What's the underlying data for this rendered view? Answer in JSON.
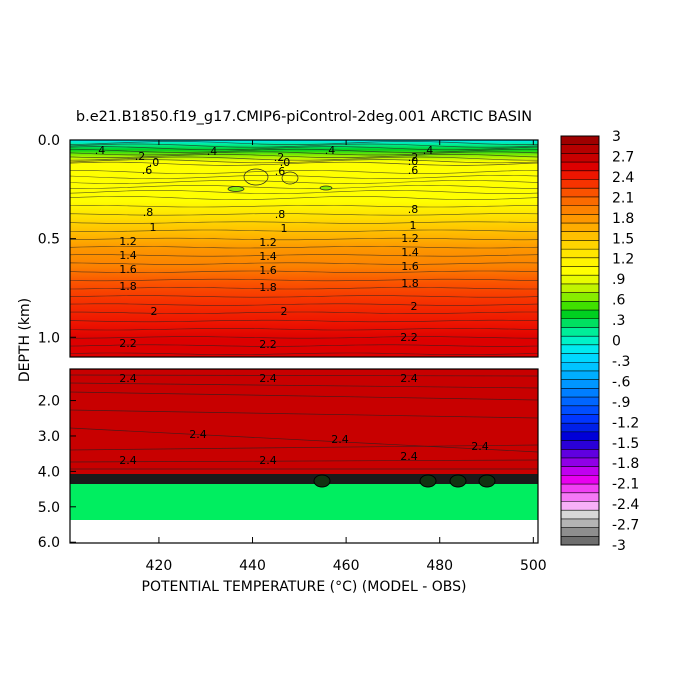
{
  "chart_data": {
    "type": "heatmap",
    "title": "b.e21.B1850.f19_g17.CMIP6-piControl-2deg.001 ARCTIC BASIN",
    "xlabel": "POTENTIAL TEMPERATURE (°C) (MODEL - OBS)",
    "ylabel": "DEPTH (km)",
    "xlim": [
      401,
      501
    ],
    "x_ticks": [
      "420",
      "440",
      "460",
      "480",
      "500"
    ],
    "panels": [
      {
        "name": "upper",
        "ylim": [
          0.0,
          1.1
        ],
        "y_ticks": [
          "0.0",
          "0.5",
          "1.0"
        ],
        "contour_labels": [
          ".4",
          ".2",
          ".0",
          ".6",
          ".8",
          "1",
          "1.2",
          "1.4",
          "1.6",
          "1.8",
          "2",
          "2.2"
        ]
      },
      {
        "name": "lower",
        "ylim": [
          1.1,
          6.0
        ],
        "y_ticks": [
          "2.0",
          "3.0",
          "4.0",
          "5.0",
          "6.0"
        ],
        "contour_labels": [
          "2.4"
        ]
      }
    ],
    "colorbar": {
      "tick_labels": [
        "3",
        "2.7",
        "2.4",
        "2.1",
        "1.8",
        "1.5",
        "1.2",
        ".9",
        ".6",
        ".3",
        "0",
        "-.3",
        "-.6",
        "-.9",
        "-1.2",
        "-1.5",
        "-1.8",
        "-2.1",
        "-2.4",
        "-2.7",
        "-3"
      ],
      "colors_top_to_bottom": [
        "#9e0000",
        "#b50000",
        "#c80000",
        "#dd0000",
        "#ee1500",
        "#f73300",
        "#fa5200",
        "#fb6b00",
        "#fc8200",
        "#fd9700",
        "#feac00",
        "#ffc000",
        "#ffd400",
        "#ffe600",
        "#fff400",
        "#ffff00",
        "#e8fc00",
        "#c0f400",
        "#88ec00",
        "#40e000",
        "#00d020",
        "#00e060",
        "#00ee99",
        "#00f2c8",
        "#00eaf0",
        "#00d8ff",
        "#00c4ff",
        "#00aeff",
        "#0096ff",
        "#007eff",
        "#0066ff",
        "#004eff",
        "#0036ff",
        "#0020e8",
        "#0000d8",
        "#2a00d8",
        "#6000e0",
        "#9000e8",
        "#c000f0",
        "#e800f0",
        "#f040f4",
        "#f478f6",
        "#f8b0f8",
        "#d8d8d8",
        "#b4b4b4",
        "#8e8e8e",
        "#6e6e6e"
      ]
    }
  }
}
